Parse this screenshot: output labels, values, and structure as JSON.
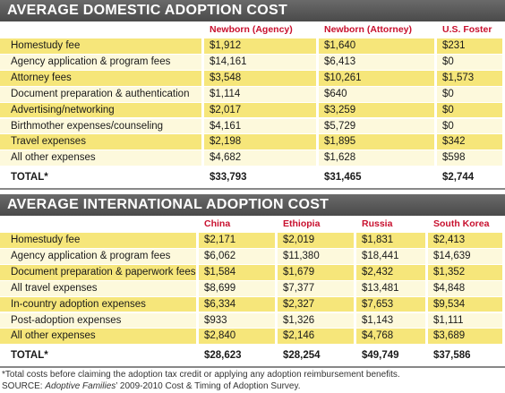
{
  "domestic": {
    "title": "AVERAGE DOMESTIC ADOPTION COST",
    "columns": [
      "Newborn (Agency)",
      "Newborn (Attorney)",
      "U.S. Foster"
    ],
    "rows": [
      [
        "Homestudy fee",
        "$1,912",
        "$1,640",
        "$231"
      ],
      [
        "Agency application & program fees",
        "$14,161",
        "$6,413",
        "$0"
      ],
      [
        "Attorney fees",
        "$3,548",
        "$10,261",
        "$1,573"
      ],
      [
        "Document preparation & authentication",
        "$1,114",
        "$640",
        "$0"
      ],
      [
        "Advertising/networking",
        "$2,017",
        "$3,259",
        "$0"
      ],
      [
        "Birthmother expenses/counseling",
        "$4,161",
        "$5,729",
        "$0"
      ],
      [
        "Travel expenses",
        "$2,198",
        "$1,895",
        "$342"
      ],
      [
        "All other expenses",
        "$4,682",
        "$1,628",
        "$598"
      ]
    ],
    "total": [
      "TOTAL*",
      "$33,793",
      "$31,465",
      "$2,744"
    ]
  },
  "international": {
    "title": "AVERAGE INTERNATIONAL ADOPTION COST",
    "columns": [
      "China",
      "Ethiopia",
      "Russia",
      "South Korea"
    ],
    "rows": [
      [
        "Homestudy fee",
        "$2,171",
        "$2,019",
        "$1,831",
        "$2,413"
      ],
      [
        "Agency application & program fees",
        "$6,062",
        "$11,380",
        "$18,441",
        "$14,639"
      ],
      [
        "Document preparation & paperwork fees",
        "$1,584",
        "$1,679",
        "$2,432",
        "$1,352"
      ],
      [
        "All travel expenses",
        "$8,699",
        "$7,377",
        "$13,481",
        "$4,848"
      ],
      [
        "In-country adoption expenses",
        "$6,334",
        "$2,327",
        "$7,653",
        "$9,534"
      ],
      [
        "Post-adoption expenses",
        "$933",
        "$1,326",
        "$1,143",
        "$1,111"
      ],
      [
        "All other expenses",
        "$2,840",
        "$2,146",
        "$4,768",
        "$3,689"
      ]
    ],
    "total": [
      "TOTAL*",
      "$28,623",
      "$28,254",
      "$49,749",
      "$37,586"
    ]
  },
  "footnote": "*Total costs before claiming the adoption tax credit or applying any adoption reimbursement benefits.",
  "source": {
    "prefix": "SOURCE:",
    "title": "Adoptive Families",
    "suffix": "’ 2009-2010 Cost & Timing of Adoption Survey."
  }
}
